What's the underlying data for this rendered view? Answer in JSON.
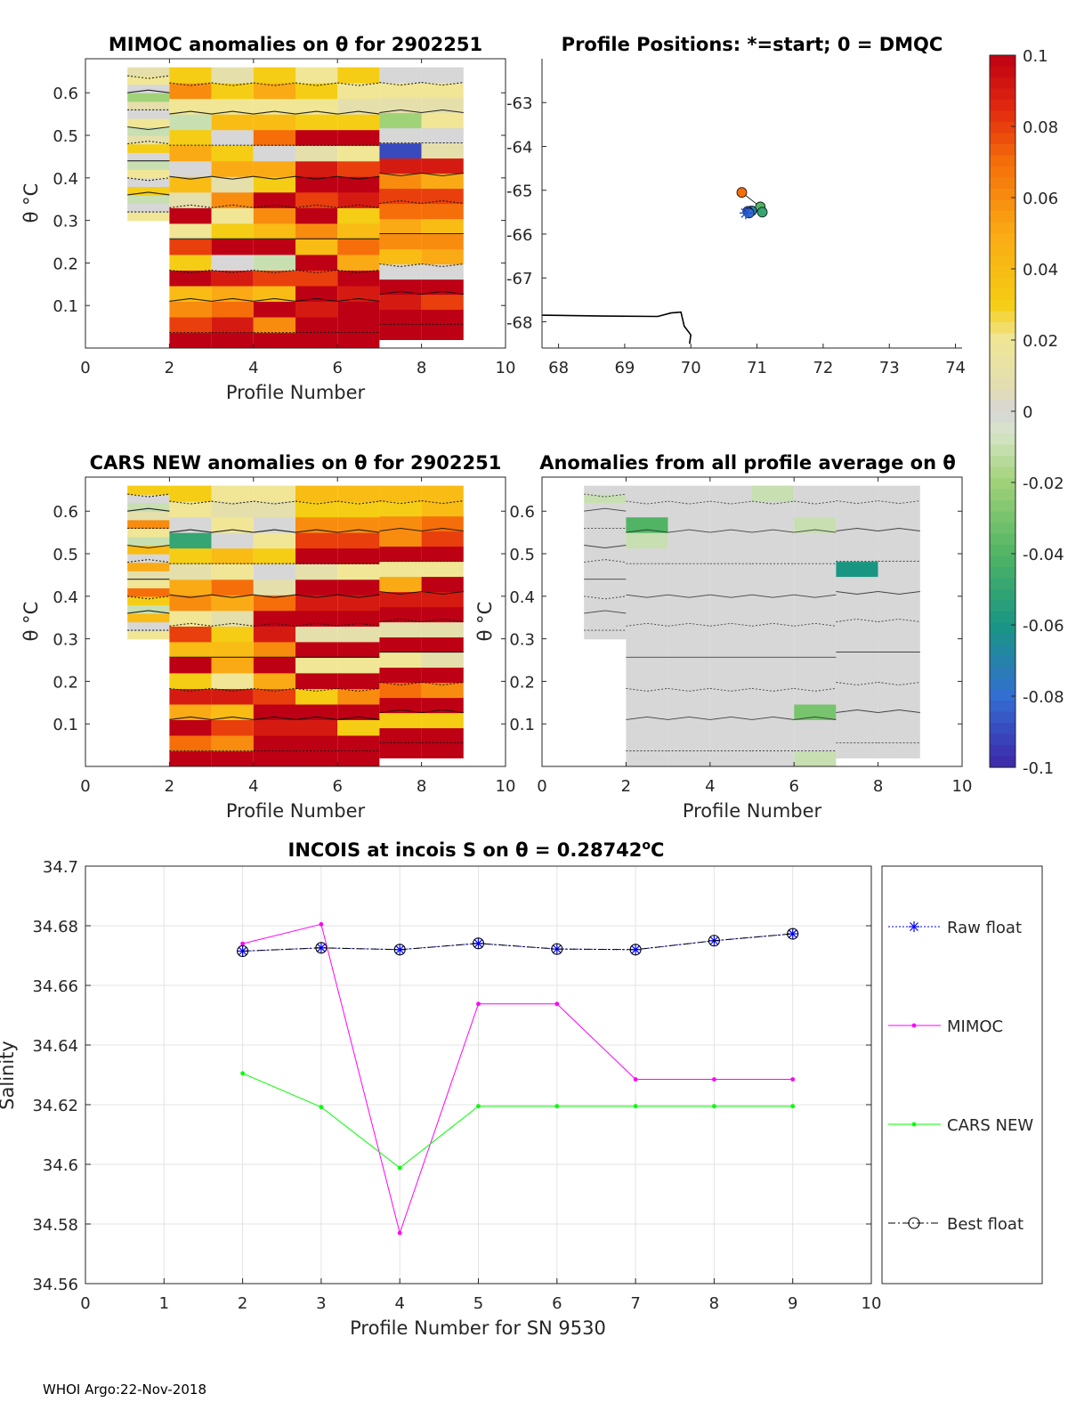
{
  "footer": "WHOI Argo:22-Nov-2018",
  "colorbar": {
    "ticks": [
      "0.1",
      "0.08",
      "0.06",
      "0.04",
      "0.02",
      "0",
      "-0.02",
      "-0.04",
      "-0.06",
      "-0.08",
      "-0.1"
    ],
    "range": [
      -0.1,
      0.1
    ]
  },
  "chart_data": [
    {
      "type": "heatmap",
      "title": "MIMOC anomalies on θ  for 2902251",
      "xlabel": "Profile Number",
      "ylabel": "θ °C",
      "xticks": [
        "0",
        "2",
        "4",
        "6",
        "8",
        "10"
      ],
      "yticks": [
        "0.6",
        "0.5",
        "0.4",
        "0.3",
        "0.2",
        "0.1"
      ],
      "xlim": [
        0,
        10
      ],
      "ylim": [
        0,
        0.68
      ],
      "profiles": [
        1,
        2,
        3,
        4,
        5,
        6,
        7,
        8
      ],
      "theta_min": [
        0.3,
        0.0,
        0.0,
        0.0,
        0.0,
        0.0,
        0.02,
        0.02
      ],
      "values_by_profile": [
        [
          0.02,
          0.0,
          -0.01,
          0.03,
          0.0,
          0.02,
          -0.01,
          0.0,
          0.03,
          0.01,
          -0.01,
          0.02,
          0.0,
          0.01,
          -0.02,
          0.0,
          0.02,
          0.01
        ],
        [
          0.1,
          0.08,
          0.06,
          0.04,
          0.1,
          0.03,
          0.08,
          0.02,
          0.1,
          0.01,
          0.04,
          0.0,
          0.05,
          0.03,
          -0.01,
          0.02,
          0.06,
          0.03
        ],
        [
          0.1,
          0.09,
          0.07,
          0.05,
          0.09,
          0.0,
          0.1,
          0.03,
          0.02,
          0.06,
          0.01,
          0.05,
          0.03,
          0.0,
          0.04,
          0.02,
          0.03,
          0.01
        ],
        [
          0.1,
          0.06,
          0.1,
          0.04,
          0.08,
          -0.01,
          0.1,
          0.04,
          0.06,
          0.1,
          0.03,
          0.05,
          0.0,
          0.07,
          0.04,
          0.02,
          0.05,
          0.03
        ],
        [
          0.1,
          0.1,
          0.09,
          0.1,
          0.08,
          0.1,
          0.04,
          0.06,
          0.1,
          0.08,
          0.1,
          0.09,
          0.01,
          0.1,
          0.03,
          0.02,
          0.03,
          0.02
        ],
        [
          0.1,
          0.1,
          0.1,
          0.09,
          0.1,
          0.05,
          0.07,
          0.04,
          0.03,
          0.09,
          0.1,
          0.08,
          0.02,
          0.1,
          0.03,
          0.01,
          0.02,
          0.03
        ],
        [
          0.1,
          0.1,
          0.09,
          0.1,
          0.0,
          0.04,
          0.06,
          0.05,
          0.07,
          0.08,
          0.06,
          0.09,
          -0.09,
          0.0,
          -0.02,
          0.01,
          0.02,
          0.0
        ],
        [
          0.1,
          0.1,
          0.08,
          0.1,
          0.0,
          0.05,
          0.06,
          0.04,
          0.07,
          0.08,
          0.05,
          0.09,
          0.01,
          0.0,
          0.02,
          0.01,
          0.02,
          0.0
        ]
      ]
    },
    {
      "type": "scatter",
      "title": "Profile Positions: *=start; 0 = DMQC",
      "xticks": [
        "68",
        "69",
        "70",
        "71",
        "72",
        "73",
        "74"
      ],
      "yticks": [
        "-63",
        "-64",
        "-65",
        "-66",
        "-67",
        "-68"
      ],
      "xlim": [
        67.75,
        74.1
      ],
      "ylim": [
        -68.6,
        -62.0
      ],
      "positions": [
        {
          "lon": 70.77,
          "lat": -65.05,
          "anom": 0.07
        },
        {
          "lon": 71.05,
          "lat": -65.38,
          "anom": -0.04
        },
        {
          "lon": 71.08,
          "lat": -65.5,
          "anom": -0.05
        },
        {
          "lon": 70.92,
          "lat": -65.47,
          "anom": -0.07
        },
        {
          "lon": 70.86,
          "lat": -65.48,
          "anom": -0.09
        },
        {
          "lon": 70.88,
          "lat": -65.52,
          "anom": -0.08
        }
      ],
      "start_marker": {
        "lon": 70.83,
        "lat": -65.52
      },
      "coastline": [
        [
          67.75,
          -67.85
        ],
        [
          68.7,
          -67.87
        ],
        [
          69.5,
          -67.88
        ],
        [
          69.7,
          -67.8
        ],
        [
          69.85,
          -67.78
        ],
        [
          69.9,
          -68.1
        ],
        [
          70.0,
          -68.3
        ],
        [
          69.98,
          -68.5
        ]
      ]
    },
    {
      "type": "heatmap",
      "title": "CARS NEW anomalies on θ for 2902251",
      "xlabel": "Profile Number",
      "ylabel": "θ °C",
      "xticks": [
        "0",
        "2",
        "4",
        "6",
        "8",
        "10"
      ],
      "yticks": [
        "0.6",
        "0.5",
        "0.4",
        "0.3",
        "0.2",
        "0.1"
      ],
      "xlim": [
        0,
        10
      ],
      "ylim": [
        0,
        0.68
      ],
      "profiles": [
        1,
        2,
        3,
        4,
        5,
        6,
        7,
        8
      ],
      "theta_min": [
        0.3,
        0.0,
        0.0,
        0.0,
        0.0,
        0.0,
        0.02,
        0.02
      ],
      "values_by_profile": [
        [
          0.02,
          0.0,
          0.04,
          -0.01,
          0.03,
          0.07,
          0.02,
          0.01,
          0.05,
          0.0,
          0.04,
          -0.01,
          0.02,
          0.06,
          0.01,
          -0.01,
          0.0,
          0.03
        ],
        [
          0.1,
          0.07,
          0.1,
          0.05,
          0.09,
          0.03,
          0.1,
          0.04,
          0.08,
          0.02,
          0.06,
          0.05,
          0.01,
          0.03,
          -0.05,
          0.0,
          0.02,
          0.03
        ],
        [
          0.1,
          0.06,
          0.08,
          0.04,
          0.09,
          0.02,
          0.05,
          0.04,
          0.03,
          0.01,
          0.05,
          0.07,
          0.02,
          0.04,
          0.0,
          0.02,
          0.01,
          0.02
        ],
        [
          0.1,
          0.1,
          0.09,
          0.1,
          0.08,
          0.05,
          0.1,
          0.06,
          0.09,
          0.1,
          0.07,
          0.01,
          0.0,
          0.03,
          0.02,
          0.0,
          0.01,
          0.02
        ],
        [
          0.1,
          0.1,
          0.09,
          0.1,
          0.03,
          0.1,
          0.02,
          0.1,
          0.01,
          0.1,
          0.09,
          0.1,
          0.01,
          0.1,
          0.08,
          0.06,
          0.03,
          0.04
        ],
        [
          0.1,
          0.1,
          0.03,
          0.1,
          0.06,
          0.1,
          0.02,
          0.1,
          0.01,
          0.1,
          0.09,
          0.1,
          0.02,
          0.1,
          0.08,
          0.06,
          0.03,
          0.04
        ],
        [
          0.1,
          0.1,
          0.03,
          0.1,
          0.07,
          0.1,
          0.02,
          0.1,
          0.01,
          0.1,
          0.09,
          0.05,
          0.02,
          0.1,
          0.06,
          0.06,
          0.03,
          0.04
        ],
        [
          0.1,
          0.1,
          0.03,
          0.1,
          0.06,
          0.1,
          0.01,
          0.1,
          0.01,
          0.1,
          0.09,
          0.1,
          0.02,
          0.1,
          0.08,
          0.07,
          0.04,
          0.04
        ]
      ]
    },
    {
      "type": "heatmap",
      "title": "Anomalies from all profile average on θ",
      "xlabel": "Profile Number",
      "ylabel": "θ °C",
      "xticks": [
        "0",
        "2",
        "4",
        "6",
        "8",
        "10"
      ],
      "yticks": [
        "0.6",
        "0.5",
        "0.4",
        "0.3",
        "0.2",
        "0.1"
      ],
      "xlim": [
        0,
        10
      ],
      "ylim": [
        0,
        0.68
      ],
      "profiles": [
        1,
        2,
        3,
        4,
        5,
        6,
        7,
        8
      ],
      "theta_min": [
        0.3,
        0.0,
        0.0,
        0.0,
        0.0,
        0.0,
        0.02,
        0.02
      ],
      "values_by_profile": [
        [
          0.0,
          0.0,
          0.0,
          0.0,
          0.0,
          0.0,
          0.0,
          0.0,
          0.0,
          0.0,
          0.0,
          0.0,
          0.0,
          0.0,
          0.0,
          0.0,
          -0.01,
          0.0
        ],
        [
          0.0,
          0.0,
          0.0,
          0.0,
          0.0,
          0.0,
          0.0,
          0.0,
          0.0,
          0.0,
          0.0,
          0.0,
          0.0,
          0.0,
          -0.01,
          -0.04,
          0.0,
          0.0
        ],
        [
          0.0,
          0.0,
          0.0,
          0.0,
          0.0,
          0.0,
          0.0,
          0.0,
          0.0,
          0.0,
          0.0,
          0.0,
          0.0,
          0.0,
          0.0,
          0.0,
          0.0,
          0.0
        ],
        [
          0.0,
          0.0,
          0.0,
          0.0,
          0.0,
          0.0,
          0.0,
          0.0,
          0.0,
          0.0,
          0.0,
          0.0,
          0.0,
          0.0,
          0.0,
          0.0,
          0.0,
          0.0
        ],
        [
          0.0,
          0.0,
          0.0,
          0.0,
          0.0,
          0.0,
          0.0,
          0.0,
          0.0,
          0.0,
          0.0,
          0.0,
          0.0,
          0.0,
          0.0,
          0.0,
          0.0,
          -0.01
        ],
        [
          -0.01,
          0.0,
          0.0,
          -0.03,
          0.0,
          0.0,
          0.0,
          0.0,
          0.0,
          0.0,
          0.0,
          0.0,
          0.0,
          0.0,
          0.0,
          -0.01,
          0.0,
          0.0
        ],
        [
          0.0,
          0.0,
          0.0,
          0.0,
          0.0,
          0.0,
          0.0,
          0.0,
          0.0,
          0.0,
          0.0,
          0.0,
          -0.06,
          0.0,
          0.0,
          0.0,
          0.0,
          0.0
        ],
        [
          0.0,
          0.0,
          0.0,
          0.0,
          0.0,
          0.0,
          0.0,
          0.0,
          0.0,
          0.0,
          0.0,
          0.0,
          0.0,
          0.0,
          0.0,
          0.0,
          0.0,
          0.0
        ]
      ]
    },
    {
      "type": "line",
      "title": "INCOIS at incois S on θ = 0.28742",
      "title_suffix": "o",
      "title_unit": "C",
      "xlabel": "Profile Number for SN 9530",
      "ylabel": "Salinity",
      "xticks": [
        "0",
        "1",
        "2",
        "3",
        "4",
        "5",
        "6",
        "7",
        "8",
        "9",
        "10"
      ],
      "yticks": [
        "34.7",
        "34.68",
        "34.66",
        "34.64",
        "34.62",
        "34.6",
        "34.58",
        "34.56"
      ],
      "xlim": [
        0,
        10
      ],
      "ylim": [
        34.56,
        34.7
      ],
      "x": [
        2,
        3,
        4,
        5,
        6,
        7,
        8,
        9
      ],
      "series": [
        {
          "name": "Raw float",
          "color": "#0000ff",
          "values": [
            34.6715,
            34.6726,
            34.672,
            34.6741,
            34.6722,
            34.672,
            34.675,
            34.6773
          ]
        },
        {
          "name": "MIMOC",
          "color": "#ff00ff",
          "values": [
            34.674,
            34.6805,
            34.577,
            34.6538,
            34.6538,
            34.6285,
            34.6285,
            34.6285
          ]
        },
        {
          "name": "CARS NEW",
          "color": "#00ff00",
          "values": [
            34.6305,
            34.6192,
            34.5988,
            34.6195,
            34.6195,
            34.6195,
            34.6195,
            34.6195
          ]
        },
        {
          "name": "Best float",
          "color": "#000000",
          "values": [
            34.6715,
            34.6726,
            34.672,
            34.6741,
            34.6722,
            34.672,
            34.675,
            34.6773
          ]
        }
      ]
    }
  ]
}
